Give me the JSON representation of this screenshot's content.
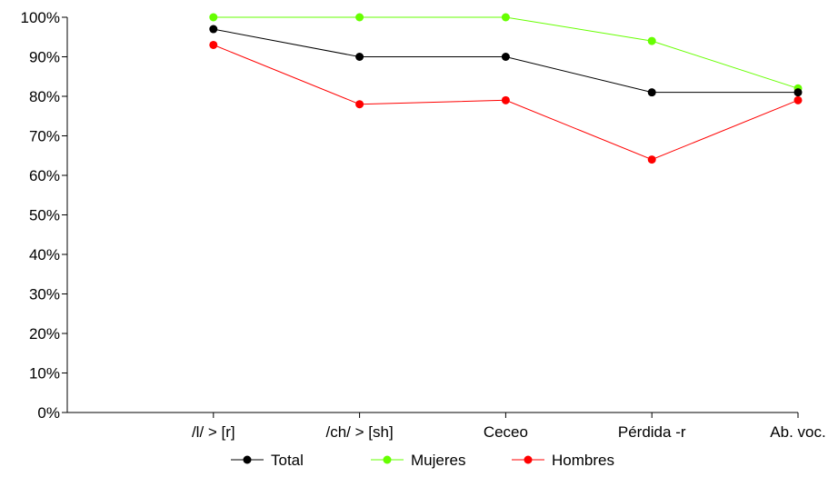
{
  "chart_data": {
    "type": "line",
    "categories": [
      "/l/ > [r]",
      "/ch/ > [sh]",
      "Ceceo",
      "Pérdida -r",
      "Ab. voc."
    ],
    "y_ticks": [
      "0%",
      "10%",
      "20%",
      "30%",
      "40%",
      "50%",
      "60%",
      "70%",
      "80%",
      "90%",
      "100%"
    ],
    "ylim": [
      0,
      100
    ],
    "grid": false,
    "legend_position": "bottom",
    "series": [
      {
        "name": "Total",
        "color": "#000000",
        "values": [
          97,
          90,
          90,
          81,
          81
        ]
      },
      {
        "name": "Mujeres",
        "color": "#66ff00",
        "values": [
          100,
          100,
          100,
          94,
          82
        ]
      },
      {
        "name": "Hombres",
        "color": "#ff0000",
        "values": [
          93,
          78,
          79,
          64,
          79
        ]
      }
    ]
  }
}
